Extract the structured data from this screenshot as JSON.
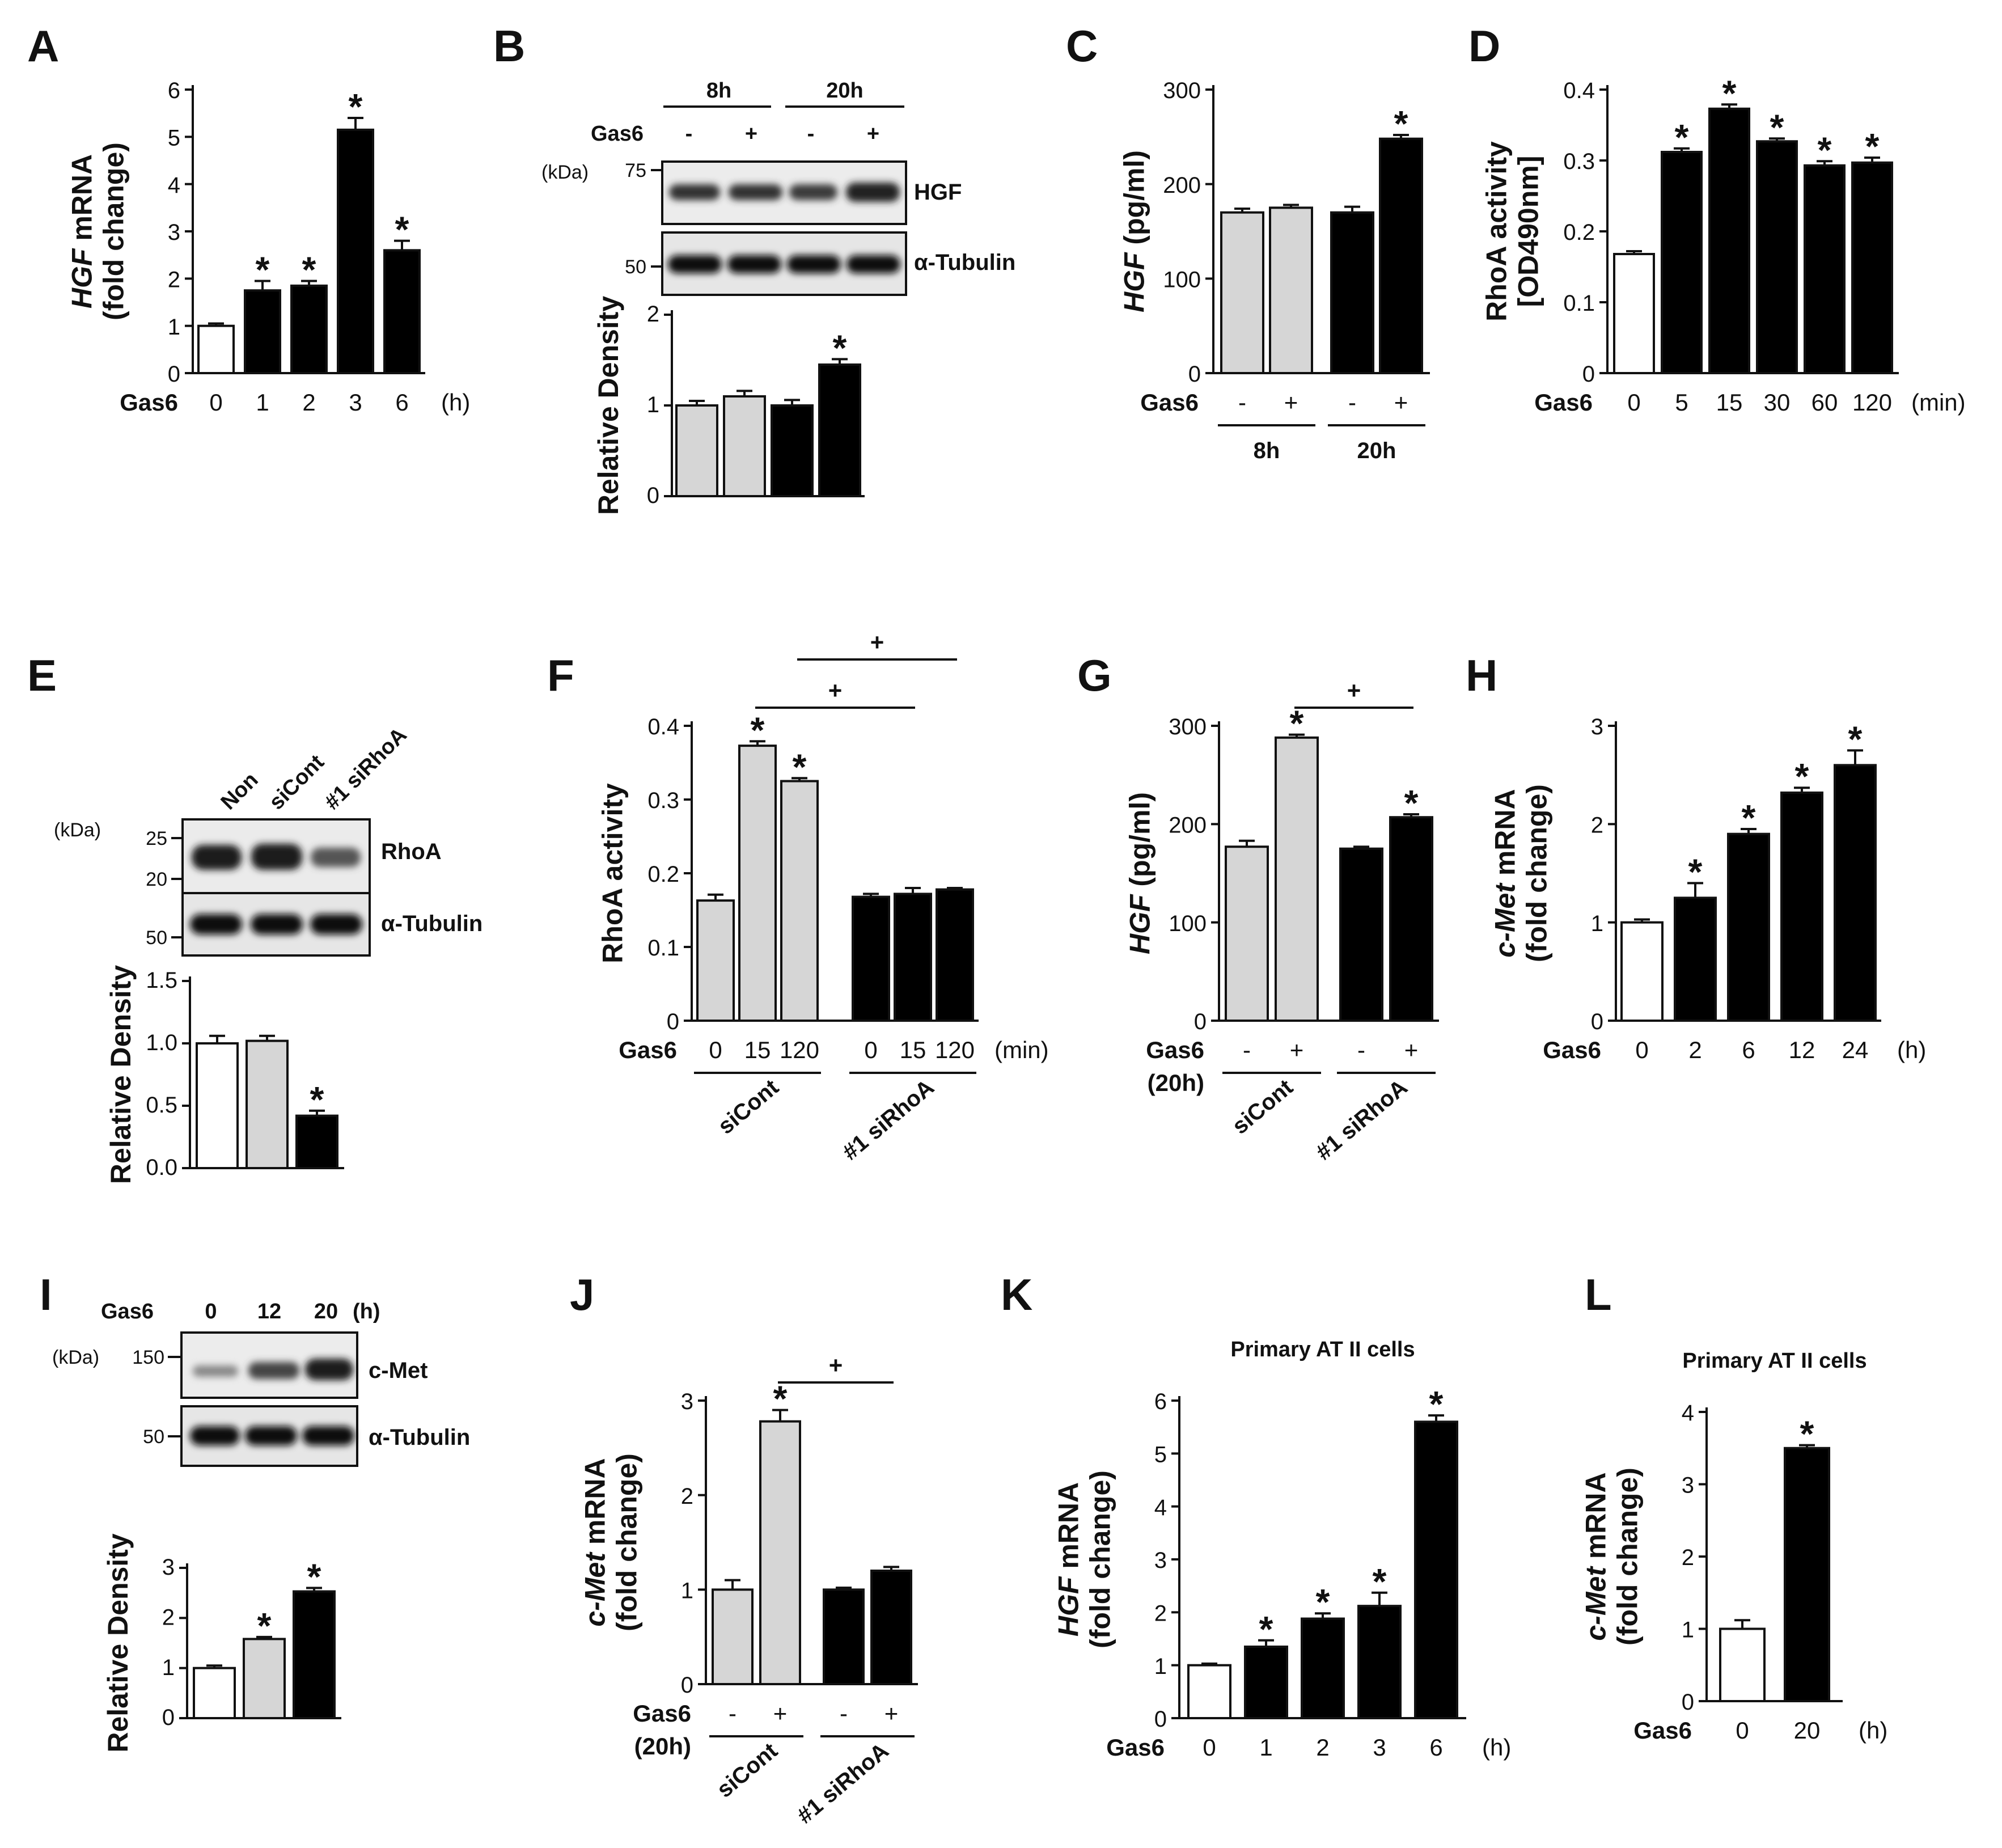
{
  "colors": {
    "white": "#ffffff",
    "gray": "#d6d6d6",
    "black": "#000000",
    "ink": "#111111"
  },
  "chart_data": [
    {
      "id": "A",
      "panel": "A",
      "type": "bar",
      "ylabel": [
        "HGF mRNA",
        "(fold change)"
      ],
      "ylim": [
        0,
        6
      ],
      "yticks": [
        0,
        1,
        2,
        3,
        4,
        5,
        6
      ],
      "xprefix": "Gas6",
      "categories": [
        "0",
        "1",
        "2",
        "3",
        "6"
      ],
      "xunit": "(h)",
      "values": [
        1.0,
        1.75,
        1.85,
        5.15,
        2.6
      ],
      "errors": [
        0.05,
        0.2,
        0.1,
        0.25,
        0.2
      ],
      "colors": [
        "white",
        "black",
        "black",
        "black",
        "black"
      ],
      "stars": [
        false,
        true,
        true,
        true,
        true
      ]
    },
    {
      "id": "B",
      "panel": "B",
      "type": "bar",
      "ylabel": [
        "Relative Density"
      ],
      "ylim": [
        0,
        2
      ],
      "yticks": [
        0,
        1,
        2
      ],
      "categories": [
        "",
        "",
        "",
        ""
      ],
      "values": [
        1.0,
        1.1,
        1.0,
        1.45
      ],
      "errors": [
        0.05,
        0.06,
        0.06,
        0.06
      ],
      "colors": [
        "gray",
        "gray",
        "black",
        "black"
      ],
      "stars": [
        false,
        false,
        false,
        true
      ]
    },
    {
      "id": "C",
      "panel": "C",
      "type": "bar",
      "ylabel": [
        "HGF  (pg/ml)"
      ],
      "ylim": [
        0,
        300
      ],
      "yticks": [
        0,
        100,
        200,
        300
      ],
      "xprefix": "Gas6",
      "categories": [
        "-",
        "+",
        "-",
        "+"
      ],
      "groups": [
        "8h",
        "20h"
      ],
      "values": [
        170,
        175,
        170,
        248
      ],
      "errors": [
        4,
        3,
        6,
        4
      ],
      "colors": [
        "gray",
        "gray",
        "black",
        "black"
      ],
      "stars": [
        false,
        false,
        false,
        true
      ]
    },
    {
      "id": "D",
      "panel": "D",
      "type": "bar",
      "ylabel": [
        "RhoA activity",
        "[OD490nm]"
      ],
      "ylim": [
        0,
        0.4
      ],
      "yticks": [
        "0",
        "0.1",
        "0.2",
        "0.3",
        "0.4"
      ],
      "xprefix": "Gas6",
      "categories": [
        "0",
        "5",
        "15",
        "30",
        "60",
        "120"
      ],
      "xunit": "(min)",
      "values": [
        0.168,
        0.312,
        0.373,
        0.327,
        0.293,
        0.297
      ],
      "errors": [
        0.004,
        0.005,
        0.006,
        0.004,
        0.006,
        0.007
      ],
      "colors": [
        "white",
        "black",
        "black",
        "black",
        "black",
        "black"
      ],
      "stars": [
        false,
        true,
        true,
        true,
        true,
        true
      ]
    },
    {
      "id": "E",
      "panel": "E",
      "type": "bar",
      "ylabel": [
        "Relative Density"
      ],
      "ylim": [
        0,
        1.5
      ],
      "yticks": [
        "0.0",
        "0.5",
        "1.0",
        "1.5"
      ],
      "categories": [
        "",
        "",
        ""
      ],
      "values": [
        1.0,
        1.02,
        0.42
      ],
      "errors": [
        0.06,
        0.04,
        0.04
      ],
      "colors": [
        "white",
        "gray",
        "black"
      ],
      "stars": [
        false,
        false,
        true
      ]
    },
    {
      "id": "F",
      "panel": "F",
      "type": "bar",
      "ylabel": [
        "RhoA activity"
      ],
      "ylim": [
        0,
        0.4
      ],
      "yticks": [
        "0",
        "0.1",
        "0.2",
        "0.3",
        "0.4"
      ],
      "xprefix": "Gas6",
      "categories": [
        "0",
        "15",
        "120",
        "0",
        "15",
        "120"
      ],
      "xunit": "(min)",
      "groups": [
        "siCont",
        "#1 siRhoA"
      ],
      "values": [
        0.163,
        0.373,
        0.325,
        0.168,
        0.172,
        0.178
      ],
      "errors": [
        0.008,
        0.006,
        0.004,
        0.004,
        0.008,
        0.002
      ],
      "colors": [
        "gray",
        "gray",
        "gray",
        "black",
        "black",
        "black"
      ],
      "stars": [
        false,
        true,
        true,
        false,
        false,
        false
      ],
      "brackets": [
        {
          "from": 1,
          "to": 4,
          "level": 0,
          "symbol": "+"
        },
        {
          "from": 2,
          "to": 5,
          "level": 1,
          "symbol": "+"
        }
      ]
    },
    {
      "id": "G",
      "panel": "G",
      "type": "bar",
      "ylabel": [
        "HGF  (pg/ml)"
      ],
      "ylim": [
        0,
        300
      ],
      "yticks": [
        0,
        100,
        200,
        300
      ],
      "xprefix": "Gas6",
      "xprefix2": "(20h)",
      "categories": [
        "-",
        "+",
        "-",
        "+"
      ],
      "groups": [
        "siCont",
        "#1 siRhoA"
      ],
      "values": [
        177,
        288,
        175,
        207
      ],
      "errors": [
        6,
        3,
        2,
        3
      ],
      "colors": [
        "gray",
        "gray",
        "black",
        "black"
      ],
      "stars": [
        false,
        true,
        false,
        true
      ],
      "brackets": [
        {
          "from": 1,
          "to": 3,
          "level": 0,
          "symbol": "+"
        }
      ]
    },
    {
      "id": "H",
      "panel": "H",
      "type": "bar",
      "ylabel": [
        "c-Met mRNA",
        "(fold change)"
      ],
      "ylim": [
        0,
        3
      ],
      "yticks": [
        0,
        1,
        2,
        3
      ],
      "xprefix": "Gas6",
      "categories": [
        "0",
        "2",
        "6",
        "12",
        "24"
      ],
      "xunit": "(h)",
      "values": [
        1.0,
        1.25,
        1.9,
        2.32,
        2.6
      ],
      "errors": [
        0.03,
        0.15,
        0.05,
        0.05,
        0.15
      ],
      "colors": [
        "white",
        "black",
        "black",
        "black",
        "black"
      ],
      "stars": [
        false,
        true,
        true,
        true,
        true
      ]
    },
    {
      "id": "I",
      "panel": "I",
      "type": "bar",
      "ylabel": [
        "Relative Density"
      ],
      "ylim": [
        0,
        3
      ],
      "yticks": [
        0,
        1,
        2,
        3
      ],
      "categories": [
        "",
        "",
        ""
      ],
      "values": [
        1.0,
        1.58,
        2.53
      ],
      "errors": [
        0.05,
        0.04,
        0.07
      ],
      "colors": [
        "white",
        "gray",
        "black"
      ],
      "stars": [
        false,
        true,
        true
      ]
    },
    {
      "id": "J",
      "panel": "J",
      "type": "bar",
      "ylabel": [
        "c-Met mRNA",
        "(fold change)"
      ],
      "ylim": [
        0,
        3
      ],
      "yticks": [
        0,
        1,
        2,
        3
      ],
      "xprefix": "Gas6",
      "xprefix2": "(20h)",
      "categories": [
        "-",
        "+",
        "-",
        "+"
      ],
      "groups": [
        "siCont",
        "#1 siRhoA"
      ],
      "values": [
        1.0,
        2.78,
        1.0,
        1.2
      ],
      "errors": [
        0.1,
        0.12,
        0.02,
        0.04
      ],
      "colors": [
        "gray",
        "gray",
        "black",
        "black"
      ],
      "stars": [
        false,
        true,
        false,
        false
      ],
      "brackets": [
        {
          "from": 1,
          "to": 3,
          "level": 0,
          "symbol": "+"
        }
      ]
    },
    {
      "id": "K",
      "panel": "K",
      "type": "bar",
      "header": "Primary AT  II cells",
      "ylabel": [
        "HGF mRNA",
        "(fold change)"
      ],
      "ylim": [
        0,
        6
      ],
      "yticks": [
        0,
        1,
        2,
        3,
        4,
        5,
        6
      ],
      "xprefix": "Gas6",
      "categories": [
        "0",
        "1",
        "2",
        "3",
        "6"
      ],
      "xunit": "(h)",
      "values": [
        1.0,
        1.35,
        1.88,
        2.12,
        5.6
      ],
      "errors": [
        0.03,
        0.12,
        0.1,
        0.25,
        0.12
      ],
      "colors": [
        "white",
        "black",
        "black",
        "black",
        "black"
      ],
      "stars": [
        false,
        true,
        true,
        true,
        true
      ]
    },
    {
      "id": "L",
      "panel": "L",
      "type": "bar",
      "header": "Primary AT  II cells",
      "ylabel": [
        "c-Met mRNA",
        "(fold change)"
      ],
      "ylim": [
        0,
        4
      ],
      "yticks": [
        0,
        1,
        2,
        3,
        4
      ],
      "xprefix": "Gas6",
      "categories": [
        "0",
        "20"
      ],
      "xunit": "(h)",
      "values": [
        1.0,
        3.5
      ],
      "errors": [
        0.12,
        0.04
      ],
      "colors": [
        "white",
        "black"
      ],
      "stars": [
        false,
        true
      ]
    }
  ],
  "blots": {
    "B": {
      "time_headers": [
        "8h",
        "20h"
      ],
      "treatment_label": "Gas6",
      "lane_signs": [
        "-",
        "+",
        "-",
        "+"
      ],
      "kda_label": "(kDa)",
      "markers": [
        "75",
        "50"
      ],
      "bands": [
        "HGF",
        "α-Tubulin"
      ]
    },
    "E": {
      "lanes": [
        "Non",
        "siCont",
        "#1 siRhoA"
      ],
      "kda_label": "(kDa)",
      "markers": [
        "25",
        "20",
        "50"
      ],
      "bands": [
        "RhoA",
        "α-Tubulin"
      ]
    },
    "I": {
      "treatment_label": "Gas6",
      "lanes": [
        "0",
        "12",
        "20"
      ],
      "unit": "(h)",
      "kda_label": "(kDa)",
      "markers": [
        "150",
        "50"
      ],
      "bands": [
        "c-Met",
        "α-Tubulin"
      ]
    }
  }
}
